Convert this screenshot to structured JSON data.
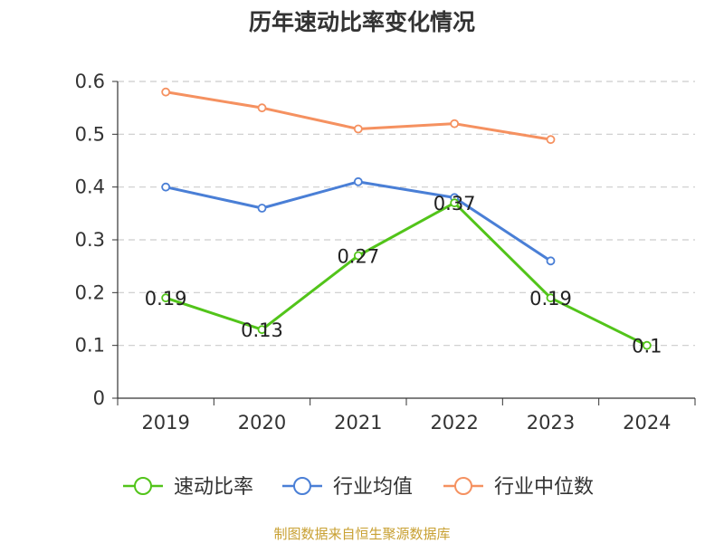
{
  "chart_data": {
    "type": "line",
    "title": "历年速动比率变化情况",
    "categories": [
      "2019",
      "2020",
      "2021",
      "2022",
      "2023",
      "2024"
    ],
    "y_ticks": [
      "0",
      "0.1",
      "0.2",
      "0.3",
      "0.4",
      "0.5",
      "0.6"
    ],
    "ylim": [
      0,
      0.6
    ],
    "grid": true,
    "legend_position": "bottom",
    "series": [
      {
        "name": "速动比率",
        "color": "#52c41a",
        "values": [
          0.19,
          0.13,
          0.27,
          0.37,
          0.19,
          0.1
        ],
        "labels": [
          "0.19",
          "0.13",
          "0.27",
          "0.37",
          "0.19",
          "0.1"
        ]
      },
      {
        "name": "行业均值",
        "color": "#4a7fd6",
        "values": [
          0.4,
          0.36,
          0.41,
          0.38,
          0.26,
          null
        ]
      },
      {
        "name": "行业中位数",
        "color": "#f59160",
        "values": [
          0.58,
          0.55,
          0.51,
          0.52,
          0.49,
          null
        ]
      }
    ],
    "source": "制图数据来自恒生聚源数据库"
  }
}
